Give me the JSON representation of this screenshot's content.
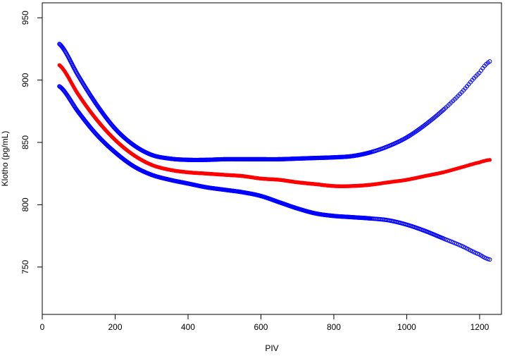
{
  "chart_data": {
    "type": "line",
    "title": "",
    "xlabel": "PIV",
    "ylabel": "Klotho (pg/mL)",
    "xlim": [
      0,
      1260
    ],
    "ylim": [
      712,
      962
    ],
    "xticks": [
      0,
      200,
      400,
      600,
      800,
      1000,
      1200
    ],
    "yticks": [
      750,
      800,
      850,
      900,
      950
    ],
    "xtick_labels": [
      "0",
      "200",
      "400",
      "600",
      "800",
      "1000",
      "1200"
    ],
    "ytick_labels": [
      "750",
      "800",
      "850",
      "900",
      "950"
    ],
    "grid": false,
    "legend": "none",
    "series": [
      {
        "role": "upper-bound",
        "color": "#0000ff",
        "x": [
          47,
          100,
          150,
          200,
          250,
          300,
          350,
          400,
          450,
          500,
          550,
          600,
          650,
          700,
          750,
          800,
          850,
          900,
          950,
          1000,
          1050,
          1100,
          1150,
          1200,
          1228
        ],
        "y": [
          929,
          903,
          880,
          861,
          848,
          840,
          837,
          836,
          836,
          836.5,
          836.5,
          836.5,
          836.5,
          837,
          837.5,
          838,
          839,
          842,
          847,
          854,
          864,
          876,
          890,
          906,
          915
        ]
      },
      {
        "role": "estimate",
        "color": "#ff0000",
        "x": [
          47,
          100,
          150,
          200,
          250,
          300,
          350,
          400,
          450,
          500,
          550,
          600,
          650,
          700,
          750,
          800,
          850,
          900,
          950,
          1000,
          1050,
          1100,
          1150,
          1200,
          1228
        ],
        "y": [
          912,
          888,
          868,
          852,
          840,
          832,
          828,
          826,
          825,
          824,
          823,
          821,
          820,
          818,
          816.5,
          815,
          815,
          816,
          818,
          820,
          823,
          826,
          830,
          834,
          836
        ]
      },
      {
        "role": "lower-bound",
        "color": "#0000ff",
        "x": [
          47,
          100,
          150,
          200,
          250,
          300,
          350,
          400,
          450,
          500,
          550,
          600,
          650,
          700,
          750,
          800,
          850,
          900,
          950,
          1000,
          1050,
          1100,
          1150,
          1200,
          1228
        ],
        "y": [
          895,
          874,
          856,
          842,
          831,
          824,
          820,
          817,
          814,
          812,
          810,
          807,
          802,
          797,
          793,
          791,
          790,
          789,
          787.5,
          784,
          779,
          773,
          767,
          760,
          756
        ]
      }
    ]
  }
}
